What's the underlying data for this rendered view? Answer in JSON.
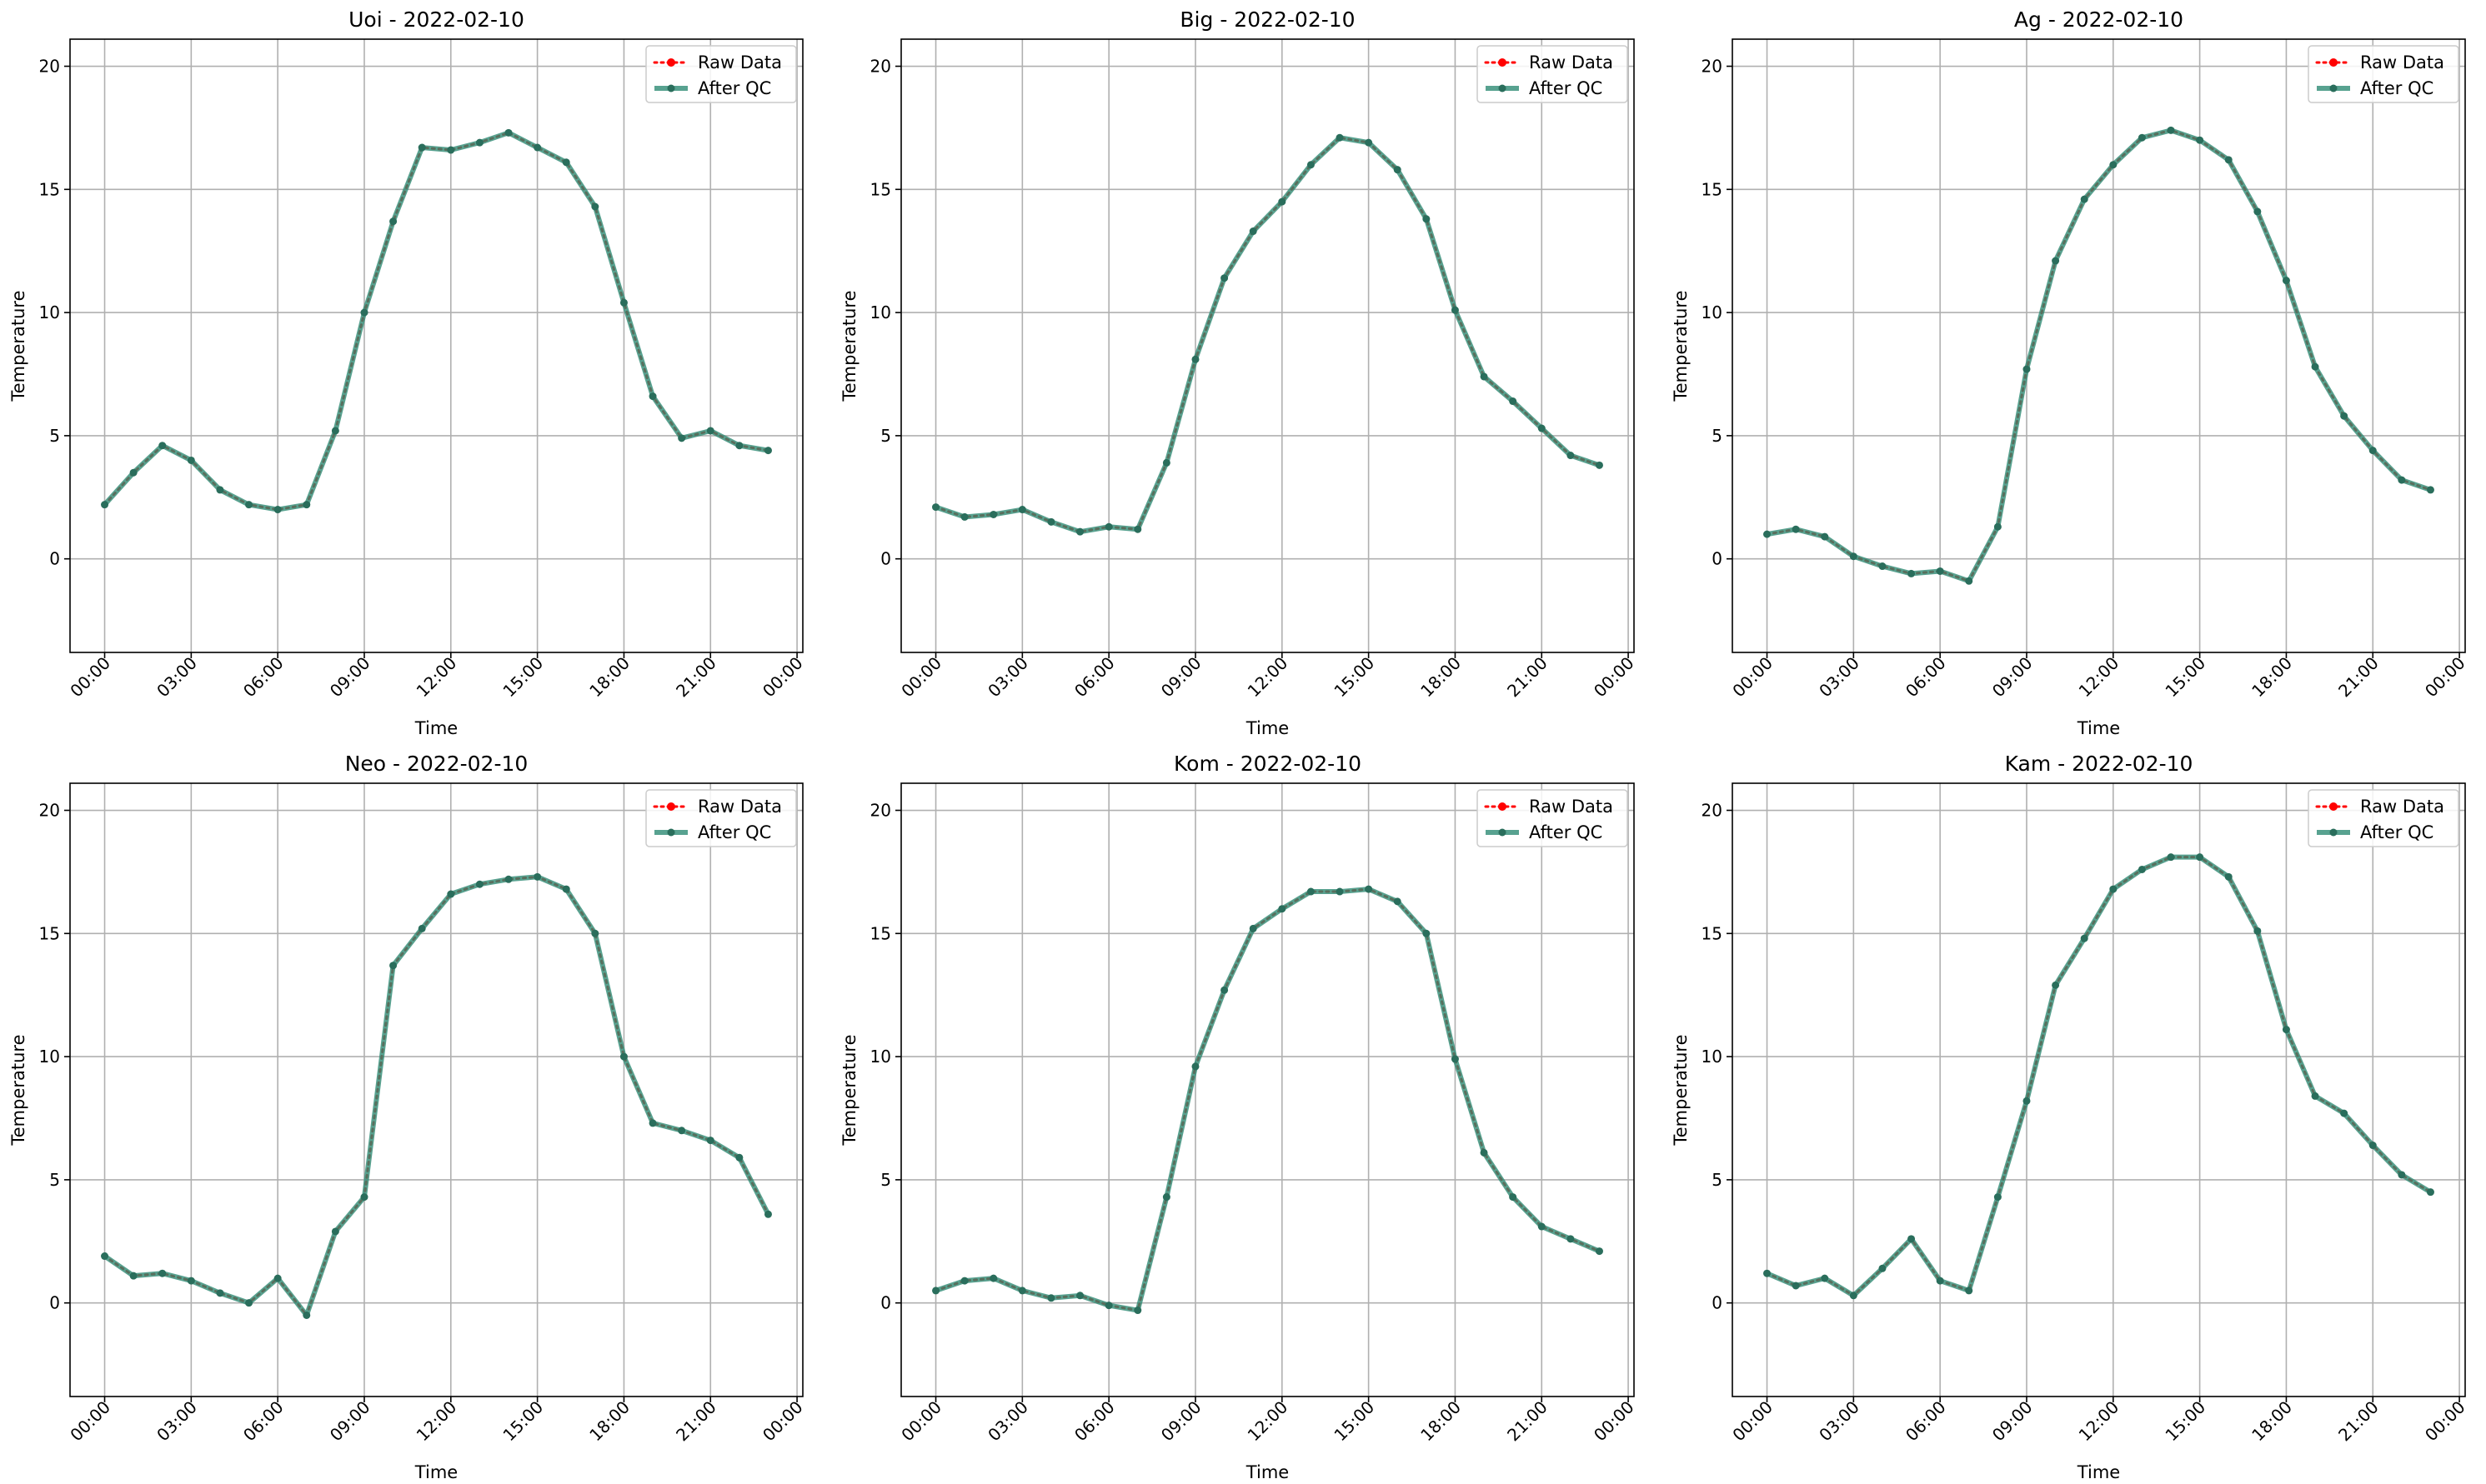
{
  "chart_data": [
    {
      "type": "line",
      "title": "Uoi - 2022-02-10",
      "xlabel": "Time",
      "ylabel": "Temperature",
      "xlim": [
        "2022-02-09 22:48",
        "2022-02-11 00:12"
      ],
      "ylim": [
        -3.8,
        21.1
      ],
      "xticks": [
        "00:00",
        "03:00",
        "06:00",
        "09:00",
        "12:00",
        "15:00",
        "18:00",
        "21:00",
        "00:00"
      ],
      "yticks": [
        0,
        5,
        10,
        15,
        20
      ],
      "grid": true,
      "legend_position": "top-right",
      "x": [
        "00:00",
        "01:00",
        "02:00",
        "03:00",
        "04:00",
        "05:00",
        "06:00",
        "07:00",
        "08:00",
        "09:00",
        "10:00",
        "11:00",
        "12:00",
        "13:00",
        "14:00",
        "15:00",
        "16:00",
        "17:00",
        "18:00",
        "19:00",
        "20:00",
        "21:00",
        "22:00",
        "23:00"
      ],
      "series": [
        {
          "name": "Raw Data",
          "color": "#ff0000",
          "style": "dotted",
          "values": [
            2.2,
            3.5,
            4.6,
            4.0,
            2.8,
            2.2,
            2.0,
            2.2,
            5.2,
            10.0,
            13.7,
            16.7,
            16.6,
            16.9,
            17.3,
            16.7,
            16.1,
            14.3,
            10.4,
            6.6,
            4.9,
            5.2,
            4.6,
            4.4
          ]
        },
        {
          "name": "After QC",
          "color": "#2e8b74",
          "style": "solid",
          "values": [
            2.2,
            3.5,
            4.6,
            4.0,
            2.8,
            2.2,
            2.0,
            2.2,
            5.2,
            10.0,
            13.7,
            16.7,
            16.6,
            16.9,
            17.3,
            16.7,
            16.1,
            14.3,
            10.4,
            6.6,
            4.9,
            5.2,
            4.6,
            4.4
          ]
        }
      ]
    },
    {
      "type": "line",
      "title": "Big - 2022-02-10",
      "xlabel": "Time",
      "ylabel": "Temperature",
      "xlim": [
        "2022-02-09 22:48",
        "2022-02-11 00:12"
      ],
      "ylim": [
        -3.8,
        21.1
      ],
      "xticks": [
        "00:00",
        "03:00",
        "06:00",
        "09:00",
        "12:00",
        "15:00",
        "18:00",
        "21:00",
        "00:00"
      ],
      "yticks": [
        0,
        5,
        10,
        15,
        20
      ],
      "grid": true,
      "legend_position": "top-right",
      "x": [
        "00:00",
        "01:00",
        "02:00",
        "03:00",
        "04:00",
        "05:00",
        "06:00",
        "07:00",
        "08:00",
        "09:00",
        "10:00",
        "11:00",
        "12:00",
        "13:00",
        "14:00",
        "15:00",
        "16:00",
        "17:00",
        "18:00",
        "19:00",
        "20:00",
        "21:00",
        "22:00",
        "23:00"
      ],
      "series": [
        {
          "name": "Raw Data",
          "color": "#ff0000",
          "style": "dotted",
          "values": [
            2.1,
            1.7,
            1.8,
            2.0,
            1.5,
            1.1,
            1.3,
            1.2,
            3.9,
            8.1,
            11.4,
            13.3,
            14.5,
            16.0,
            17.1,
            16.9,
            15.8,
            13.8,
            10.1,
            7.4,
            6.4,
            5.3,
            4.2,
            3.8
          ]
        },
        {
          "name": "After QC",
          "color": "#2e8b74",
          "style": "solid",
          "values": [
            2.1,
            1.7,
            1.8,
            2.0,
            1.5,
            1.1,
            1.3,
            1.2,
            3.9,
            8.1,
            11.4,
            13.3,
            14.5,
            16.0,
            17.1,
            16.9,
            15.8,
            13.8,
            10.1,
            7.4,
            6.4,
            5.3,
            4.2,
            3.8
          ]
        }
      ]
    },
    {
      "type": "line",
      "title": "Ag - 2022-02-10",
      "xlabel": "Time",
      "ylabel": "Temperature",
      "xlim": [
        "2022-02-09 22:48",
        "2022-02-11 00:12"
      ],
      "ylim": [
        -3.8,
        21.1
      ],
      "xticks": [
        "00:00",
        "03:00",
        "06:00",
        "09:00",
        "12:00",
        "15:00",
        "18:00",
        "21:00",
        "00:00"
      ],
      "yticks": [
        0,
        5,
        10,
        15,
        20
      ],
      "grid": true,
      "legend_position": "top-right",
      "x": [
        "00:00",
        "01:00",
        "02:00",
        "03:00",
        "04:00",
        "05:00",
        "06:00",
        "07:00",
        "08:00",
        "09:00",
        "10:00",
        "11:00",
        "12:00",
        "13:00",
        "14:00",
        "15:00",
        "16:00",
        "17:00",
        "18:00",
        "19:00",
        "20:00",
        "21:00",
        "22:00",
        "23:00"
      ],
      "series": [
        {
          "name": "Raw Data",
          "color": "#ff0000",
          "style": "dotted",
          "values": [
            1.0,
            1.2,
            0.9,
            0.1,
            -0.3,
            -0.6,
            -0.5,
            -0.9,
            1.3,
            7.7,
            12.1,
            14.6,
            16.0,
            17.1,
            17.4,
            17.0,
            16.2,
            14.1,
            11.3,
            7.8,
            5.8,
            4.4,
            3.2,
            2.8
          ]
        },
        {
          "name": "After QC",
          "color": "#2e8b74",
          "style": "solid",
          "values": [
            1.0,
            1.2,
            0.9,
            0.1,
            -0.3,
            -0.6,
            -0.5,
            -0.9,
            1.3,
            7.7,
            12.1,
            14.6,
            16.0,
            17.1,
            17.4,
            17.0,
            16.2,
            14.1,
            11.3,
            7.8,
            5.8,
            4.4,
            3.2,
            2.8
          ]
        }
      ]
    },
    {
      "type": "line",
      "title": "Neo - 2022-02-10",
      "xlabel": "Time",
      "ylabel": "Temperature",
      "xlim": [
        "2022-02-09 22:48",
        "2022-02-11 00:12"
      ],
      "ylim": [
        -3.8,
        21.1
      ],
      "xticks": [
        "00:00",
        "03:00",
        "06:00",
        "09:00",
        "12:00",
        "15:00",
        "18:00",
        "21:00",
        "00:00"
      ],
      "yticks": [
        0,
        5,
        10,
        15,
        20
      ],
      "grid": true,
      "legend_position": "top-right",
      "x": [
        "00:00",
        "01:00",
        "02:00",
        "03:00",
        "04:00",
        "05:00",
        "06:00",
        "07:00",
        "08:00",
        "09:00",
        "10:00",
        "11:00",
        "12:00",
        "13:00",
        "14:00",
        "15:00",
        "16:00",
        "17:00",
        "18:00",
        "19:00",
        "20:00",
        "21:00",
        "22:00",
        "23:00"
      ],
      "series": [
        {
          "name": "Raw Data",
          "color": "#ff0000",
          "style": "dotted",
          "values": [
            1.9,
            1.1,
            1.2,
            0.9,
            0.4,
            0.0,
            1.0,
            -0.5,
            2.9,
            4.3,
            13.7,
            15.2,
            16.6,
            17.0,
            17.2,
            17.3,
            16.8,
            15.0,
            10.0,
            7.3,
            7.0,
            6.6,
            5.9,
            3.6
          ]
        },
        {
          "name": "After QC",
          "color": "#2e8b74",
          "style": "solid",
          "values": [
            1.9,
            1.1,
            1.2,
            0.9,
            0.4,
            0.0,
            1.0,
            -0.5,
            2.9,
            4.3,
            13.7,
            15.2,
            16.6,
            17.0,
            17.2,
            17.3,
            16.8,
            15.0,
            10.0,
            7.3,
            7.0,
            6.6,
            5.9,
            3.6
          ]
        }
      ]
    },
    {
      "type": "line",
      "title": "Kom - 2022-02-10",
      "xlabel": "Time",
      "ylabel": "Temperature",
      "xlim": [
        "2022-02-09 22:48",
        "2022-02-11 00:12"
      ],
      "ylim": [
        -3.8,
        21.1
      ],
      "xticks": [
        "00:00",
        "03:00",
        "06:00",
        "09:00",
        "12:00",
        "15:00",
        "18:00",
        "21:00",
        "00:00"
      ],
      "yticks": [
        0,
        5,
        10,
        15,
        20
      ],
      "grid": true,
      "legend_position": "top-right",
      "x": [
        "00:00",
        "01:00",
        "02:00",
        "03:00",
        "04:00",
        "05:00",
        "06:00",
        "07:00",
        "08:00",
        "09:00",
        "10:00",
        "11:00",
        "12:00",
        "13:00",
        "14:00",
        "15:00",
        "16:00",
        "17:00",
        "18:00",
        "19:00",
        "20:00",
        "21:00",
        "22:00",
        "23:00"
      ],
      "series": [
        {
          "name": "Raw Data",
          "color": "#ff0000",
          "style": "dotted",
          "values": [
            0.5,
            0.9,
            1.0,
            0.5,
            0.2,
            0.3,
            -0.1,
            -0.3,
            4.3,
            9.6,
            12.7,
            15.2,
            16.0,
            16.7,
            16.7,
            16.8,
            16.3,
            15.0,
            9.9,
            6.1,
            4.3,
            3.1,
            2.6,
            2.1
          ]
        },
        {
          "name": "After QC",
          "color": "#2e8b74",
          "style": "solid",
          "values": [
            0.5,
            0.9,
            1.0,
            0.5,
            0.2,
            0.3,
            -0.1,
            -0.3,
            4.3,
            9.6,
            12.7,
            15.2,
            16.0,
            16.7,
            16.7,
            16.8,
            16.3,
            15.0,
            9.9,
            6.1,
            4.3,
            3.1,
            2.6,
            2.1
          ]
        }
      ]
    },
    {
      "type": "line",
      "title": "Kam - 2022-02-10",
      "xlabel": "Time",
      "ylabel": "Temperature",
      "xlim": [
        "2022-02-09 22:48",
        "2022-02-11 00:12"
      ],
      "ylim": [
        -3.8,
        21.1
      ],
      "xticks": [
        "00:00",
        "03:00",
        "06:00",
        "09:00",
        "12:00",
        "15:00",
        "18:00",
        "21:00",
        "00:00"
      ],
      "yticks": [
        0,
        5,
        10,
        15,
        20
      ],
      "grid": true,
      "legend_position": "top-right",
      "x": [
        "00:00",
        "01:00",
        "02:00",
        "03:00",
        "04:00",
        "05:00",
        "06:00",
        "07:00",
        "08:00",
        "09:00",
        "10:00",
        "11:00",
        "12:00",
        "13:00",
        "14:00",
        "15:00",
        "16:00",
        "17:00",
        "18:00",
        "19:00",
        "20:00",
        "21:00",
        "22:00",
        "23:00"
      ],
      "series": [
        {
          "name": "Raw Data",
          "color": "#ff0000",
          "style": "dotted",
          "values": [
            1.2,
            0.7,
            1.0,
            0.3,
            1.4,
            2.6,
            0.9,
            0.5,
            4.3,
            8.2,
            12.9,
            14.8,
            16.8,
            17.6,
            18.1,
            18.1,
            17.3,
            15.1,
            11.1,
            8.4,
            7.7,
            6.4,
            5.2,
            4.5
          ]
        },
        {
          "name": "After QC",
          "color": "#2e8b74",
          "style": "solid",
          "values": [
            1.2,
            0.7,
            1.0,
            0.3,
            1.4,
            2.6,
            0.9,
            0.5,
            4.3,
            8.2,
            12.9,
            14.8,
            16.8,
            17.6,
            18.1,
            18.1,
            17.3,
            15.1,
            11.1,
            8.4,
            7.7,
            6.4,
            5.2,
            4.5
          ]
        }
      ]
    }
  ]
}
